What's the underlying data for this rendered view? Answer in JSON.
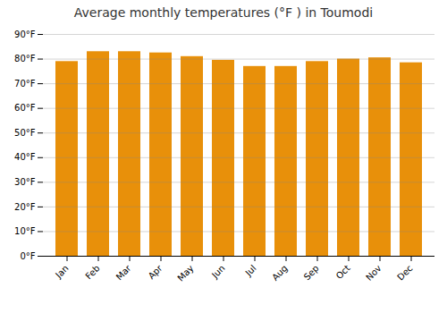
{
  "chart_data": {
    "type": "bar",
    "title": "Average monthly temperatures (°F ) in Toumodi",
    "categories": [
      "Jan",
      "Feb",
      "Mar",
      "Apr",
      "May",
      "Jun",
      "Jul",
      "Aug",
      "Sep",
      "Oct",
      "Nov",
      "Dec"
    ],
    "values": [
      79,
      83,
      83,
      82.5,
      81,
      79.5,
      77,
      77,
      79,
      80,
      80.5,
      78.5
    ],
    "color": "#E8900A",
    "ylim": [
      0,
      90
    ],
    "yticks": [
      {
        "value": 0,
        "label": "0°F"
      },
      {
        "value": 10,
        "label": "10°F"
      },
      {
        "value": 20,
        "label": "20°F"
      },
      {
        "value": 30,
        "label": "30°F"
      },
      {
        "value": 40,
        "label": "40°F"
      },
      {
        "value": 50,
        "label": "50°F"
      },
      {
        "value": 60,
        "label": "60°F"
      },
      {
        "value": 70,
        "label": "70°F"
      },
      {
        "value": 80,
        "label": "80°F"
      },
      {
        "value": 90,
        "label": "90°F"
      }
    ],
    "grid": true
  }
}
